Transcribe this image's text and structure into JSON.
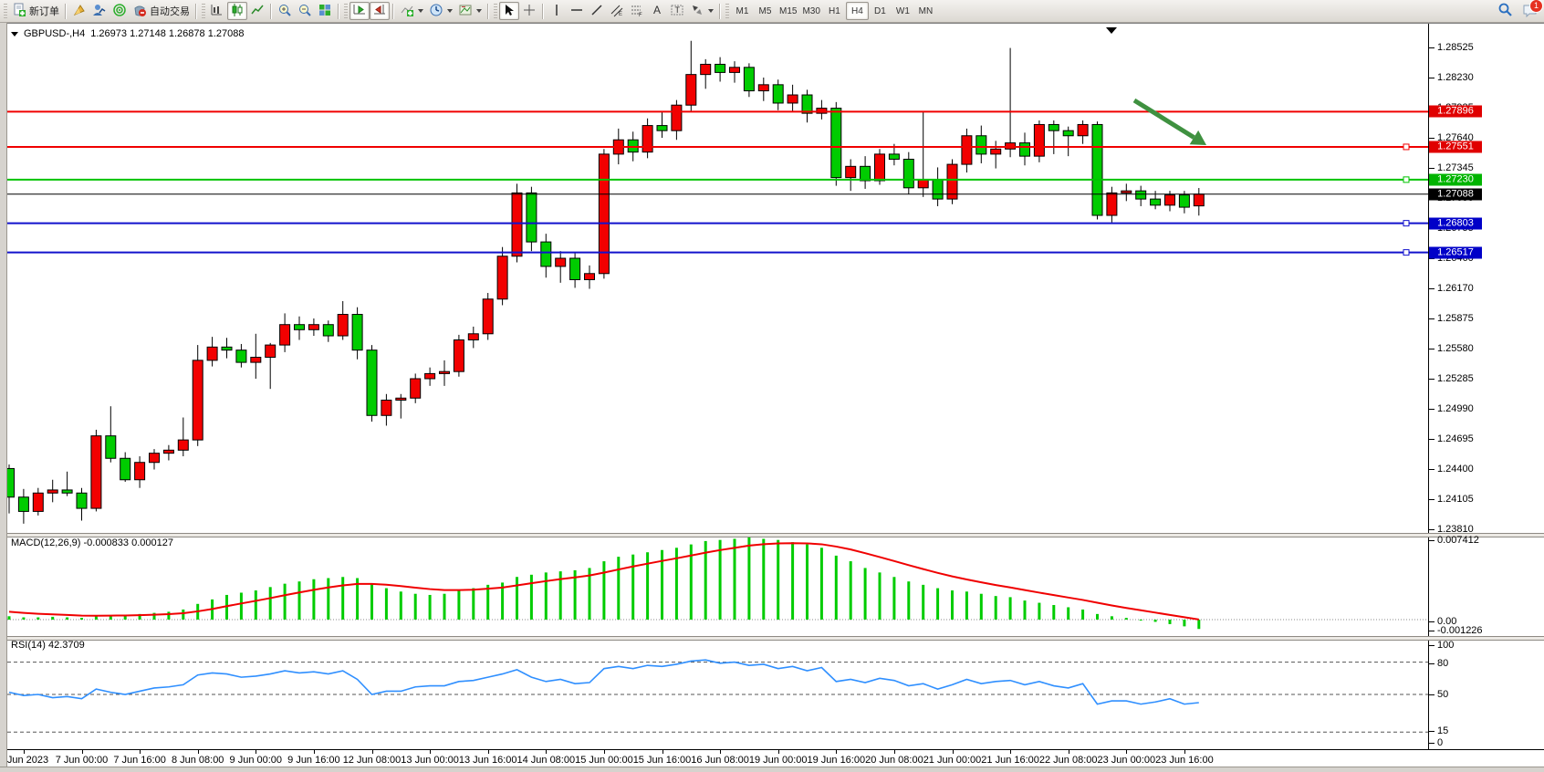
{
  "toolbar": {
    "new_order_label": "新订单",
    "auto_trading_label": "自动交易",
    "timeframes": [
      "M1",
      "M5",
      "M15",
      "M30",
      "H1",
      "H4",
      "D1",
      "W1",
      "MN"
    ],
    "selected_timeframe": "H4",
    "notification_count": "1"
  },
  "chart": {
    "symbol_period": "GBPUSD-,H4",
    "ohlc_text": "1.26973 1.27148 1.26878 1.27088"
  },
  "colors": {
    "candle_up": "#f20000",
    "candle_down": "#00cc00",
    "wick": "#000000",
    "line_red": "#f00000",
    "line_green": "#00c300",
    "line_blue": "#1212cc",
    "line_black": "#000000",
    "macd_hist": "#00cc00",
    "macd_signal": "#f00000",
    "rsi_line": "#2f8fff",
    "arrow_green": "#3f9140"
  },
  "price_axis": {
    "ticks": [
      "1.28525",
      "1.28230",
      "1.27935",
      "1.27640",
      "1.27345",
      "1.27050",
      "1.26755",
      "1.26460",
      "1.26170",
      "1.25875",
      "1.25580",
      "1.25285",
      "1.24990",
      "1.24695",
      "1.24400",
      "1.24105",
      "1.23810"
    ]
  },
  "time_axis": {
    "labels": [
      "6 Jun 2023",
      "7 Jun 00:00",
      "7 Jun 16:00",
      "8 Jun 08:00",
      "9 Jun 00:00",
      "9 Jun 16:00",
      "12 Jun 08:00",
      "13 Jun 00:00",
      "13 Jun 16:00",
      "14 Jun 08:00",
      "15 Jun 00:00",
      "15 Jun 16:00",
      "16 Jun 08:00",
      "19 Jun 00:00",
      "19 Jun 16:00",
      "20 Jun 08:00",
      "21 Jun 00:00",
      "21 Jun 16:00",
      "22 Jun 08:00",
      "23 Jun 00:00",
      "23 Jun 16:00"
    ]
  },
  "lines": [
    {
      "price": 1.27896,
      "label": "1.27896",
      "color": "#f00000",
      "tag": "#e00000",
      "width": 2,
      "marker": false
    },
    {
      "price": 1.27551,
      "label": "1.27551",
      "color": "#f00000",
      "tag": "#e00000",
      "width": 2,
      "marker": true
    },
    {
      "price": 1.2723,
      "label": "1.27230",
      "color": "#00c300",
      "tag": "#00b400",
      "width": 2,
      "marker": true
    },
    {
      "price": 1.27088,
      "label": "1.27088",
      "color": "#000000",
      "tag": "#000000",
      "width": 1,
      "marker": false
    },
    {
      "price": 1.26803,
      "label": "1.26803",
      "color": "#1212cc",
      "tag": "#0000c8",
      "width": 2,
      "marker": true
    },
    {
      "price": 1.26517,
      "label": "1.26517",
      "color": "#1212cc",
      "tag": "#0000c8",
      "width": 2,
      "marker": true
    }
  ],
  "indicators": {
    "macd": {
      "label": "MACD(12,26,9)",
      "values": "-0.000833 0.000127",
      "axis_max": "0.007412",
      "axis_zero": "0.00",
      "axis_min": "-0.001226"
    },
    "rsi": {
      "label": "RSI(14)",
      "values": "42.3709",
      "axis": [
        "100",
        "80",
        "50",
        "15",
        "0"
      ]
    }
  },
  "chart_data": [
    {
      "type": "candlestick",
      "title": "GBPUSD-,H4",
      "timeframe": "H4",
      "x_labels": [
        "6 Jun 2023",
        "7 Jun 00:00",
        "7 Jun 16:00",
        "8 Jun 08:00",
        "9 Jun 00:00",
        "9 Jun 16:00",
        "12 Jun 08:00",
        "13 Jun 00:00",
        "13 Jun 16:00",
        "14 Jun 08:00",
        "15 Jun 00:00",
        "15 Jun 16:00",
        "16 Jun 08:00",
        "19 Jun 00:00",
        "19 Jun 16:00",
        "20 Jun 08:00",
        "21 Jun 00:00",
        "21 Jun 16:00",
        "22 Jun 08:00",
        "23 Jun 00:00",
        "23 Jun 16:00"
      ],
      "ylim": [
        1.2381,
        1.2864
      ],
      "levels": [
        1.27896,
        1.27551,
        1.2723,
        1.27088,
        1.26803,
        1.26517
      ],
      "annotations": [
        {
          "type": "arrow",
          "direction": "down-right",
          "from": {
            "x": 1243,
            "y": 110
          },
          "to": {
            "x": 1322,
            "y": 159
          },
          "color": "#3f9140"
        }
      ],
      "ohlc": [
        [
          1.244,
          1.2444,
          1.2396,
          1.2412
        ],
        [
          1.2412,
          1.242,
          1.2386,
          1.2398
        ],
        [
          1.2398,
          1.2421,
          1.2394,
          1.2416
        ],
        [
          1.2416,
          1.2429,
          1.2407,
          1.2419
        ],
        [
          1.2419,
          1.2437,
          1.2413,
          1.2416
        ],
        [
          1.2416,
          1.2421,
          1.2389,
          1.2401
        ],
        [
          1.2401,
          1.2478,
          1.2398,
          1.2472
        ],
        [
          1.2472,
          1.2501,
          1.2446,
          1.245
        ],
        [
          1.245,
          1.2456,
          1.2427,
          1.2429
        ],
        [
          1.2429,
          1.2452,
          1.2421,
          1.2446
        ],
        [
          1.2446,
          1.2459,
          1.2439,
          1.2455
        ],
        [
          1.2455,
          1.2463,
          1.2448,
          1.2458
        ],
        [
          1.2458,
          1.249,
          1.2452,
          1.2468
        ],
        [
          1.2468,
          1.2561,
          1.2462,
          1.2546
        ],
        [
          1.2546,
          1.2569,
          1.254,
          1.2559
        ],
        [
          1.2559,
          1.2568,
          1.2548,
          1.2556
        ],
        [
          1.2556,
          1.2562,
          1.2539,
          1.2544
        ],
        [
          1.2544,
          1.2572,
          1.2528,
          1.2549
        ],
        [
          1.2549,
          1.2563,
          1.2518,
          1.2561
        ],
        [
          1.2561,
          1.2592,
          1.2554,
          1.2581
        ],
        [
          1.2581,
          1.2589,
          1.2566,
          1.2576
        ],
        [
          1.2576,
          1.2587,
          1.257,
          1.2581
        ],
        [
          1.2581,
          1.2585,
          1.2564,
          1.257
        ],
        [
          1.257,
          1.2604,
          1.2566,
          1.2591
        ],
        [
          1.2591,
          1.2598,
          1.2547,
          1.2556
        ],
        [
          1.2556,
          1.2561,
          1.2486,
          1.2492
        ],
        [
          1.2492,
          1.2513,
          1.2482,
          1.2507
        ],
        [
          1.2507,
          1.2513,
          1.2489,
          1.2509
        ],
        [
          1.2509,
          1.2533,
          1.2504,
          1.2528
        ],
        [
          1.2528,
          1.2539,
          1.2521,
          1.2533
        ],
        [
          1.2533,
          1.2546,
          1.2521,
          1.2535
        ],
        [
          1.2535,
          1.2571,
          1.253,
          1.2566
        ],
        [
          1.2566,
          1.2579,
          1.2558,
          1.2572
        ],
        [
          1.2572,
          1.2612,
          1.2566,
          1.2606
        ],
        [
          1.2606,
          1.2657,
          1.26,
          1.2648
        ],
        [
          1.2648,
          1.2719,
          1.2642,
          1.271
        ],
        [
          1.271,
          1.2716,
          1.2653,
          1.2662
        ],
        [
          1.2662,
          1.267,
          1.2627,
          1.2638
        ],
        [
          1.2638,
          1.2653,
          1.2622,
          1.2646
        ],
        [
          1.2646,
          1.2651,
          1.2617,
          1.2625
        ],
        [
          1.2625,
          1.2639,
          1.2616,
          1.2631
        ],
        [
          1.2631,
          1.2753,
          1.2626,
          1.2748
        ],
        [
          1.2748,
          1.2773,
          1.2738,
          1.2762
        ],
        [
          1.2762,
          1.277,
          1.2741,
          1.275
        ],
        [
          1.275,
          1.2783,
          1.2744,
          1.2776
        ],
        [
          1.2776,
          1.2789,
          1.2764,
          1.2771
        ],
        [
          1.2771,
          1.2801,
          1.2762,
          1.2796
        ],
        [
          1.2796,
          1.2859,
          1.279,
          1.2826
        ],
        [
          1.2826,
          1.2841,
          1.2812,
          1.2836
        ],
        [
          1.2836,
          1.2843,
          1.2819,
          1.2828
        ],
        [
          1.2828,
          1.2839,
          1.2818,
          1.2833
        ],
        [
          1.2833,
          1.2837,
          1.2804,
          1.281
        ],
        [
          1.281,
          1.2823,
          1.28,
          1.2816
        ],
        [
          1.2816,
          1.2821,
          1.2791,
          1.2798
        ],
        [
          1.2798,
          1.2816,
          1.2789,
          1.2806
        ],
        [
          1.2806,
          1.2811,
          1.2779,
          1.2788
        ],
        [
          1.2788,
          1.2801,
          1.2782,
          1.2793
        ],
        [
          1.2793,
          1.2799,
          1.2717,
          1.2725
        ],
        [
          1.2725,
          1.2743,
          1.2712,
          1.2736
        ],
        [
          1.2736,
          1.2746,
          1.2714,
          1.2722
        ],
        [
          1.2722,
          1.2753,
          1.2718,
          1.2748
        ],
        [
          1.2748,
          1.2758,
          1.2737,
          1.2743
        ],
        [
          1.2743,
          1.275,
          1.2709,
          1.2715
        ],
        [
          1.2715,
          1.2789,
          1.2706,
          1.2723
        ],
        [
          1.2723,
          1.2735,
          1.2697,
          1.2704
        ],
        [
          1.2704,
          1.2743,
          1.2699,
          1.2738
        ],
        [
          1.2738,
          1.2773,
          1.273,
          1.2766
        ],
        [
          1.2766,
          1.2776,
          1.2739,
          1.2748
        ],
        [
          1.2748,
          1.2761,
          1.2734,
          1.2753
        ],
        [
          1.2753,
          1.2852,
          1.2745,
          1.2759
        ],
        [
          1.2759,
          1.2769,
          1.2737,
          1.2746
        ],
        [
          1.2746,
          1.2781,
          1.274,
          1.2777
        ],
        [
          1.2777,
          1.2781,
          1.2748,
          1.2771
        ],
        [
          1.2771,
          1.2775,
          1.2746,
          1.2766
        ],
        [
          1.2766,
          1.2781,
          1.2758,
          1.2777
        ],
        [
          1.2777,
          1.278,
          1.2684,
          1.2688
        ],
        [
          1.2688,
          1.2716,
          1.2681,
          1.271
        ],
        [
          1.271,
          1.2719,
          1.2702,
          1.2712
        ],
        [
          1.2712,
          1.2717,
          1.2697,
          1.2704
        ],
        [
          1.2704,
          1.2712,
          1.2694,
          1.2698
        ],
        [
          1.2698,
          1.2712,
          1.2692,
          1.2708
        ],
        [
          1.2708,
          1.2712,
          1.269,
          1.2696
        ],
        [
          1.26973,
          1.27148,
          1.26878,
          1.27088
        ]
      ]
    },
    {
      "type": "bar",
      "name": "MACD(12,26,9) histogram",
      "ylim": [
        -0.001226,
        0.007412
      ],
      "current": -0.000833,
      "values": [
        0.0003,
        0.0002,
        0.0002,
        0.00025,
        0.0002,
        0.00015,
        0.0003,
        0.0004,
        0.0004,
        0.0005,
        0.0006,
        0.0007,
        0.0009,
        0.0014,
        0.0018,
        0.0022,
        0.0024,
        0.0026,
        0.0029,
        0.0032,
        0.0034,
        0.0036,
        0.0037,
        0.0038,
        0.0037,
        0.0032,
        0.0028,
        0.0025,
        0.0023,
        0.0022,
        0.0023,
        0.0026,
        0.0028,
        0.0031,
        0.0033,
        0.0038,
        0.004,
        0.0042,
        0.0043,
        0.0044,
        0.0046,
        0.0052,
        0.0056,
        0.0058,
        0.006,
        0.0062,
        0.0064,
        0.0067,
        0.007,
        0.0071,
        0.0072,
        0.0074,
        0.0072,
        0.0071,
        0.0069,
        0.0067,
        0.0064,
        0.0057,
        0.0052,
        0.0046,
        0.0042,
        0.0038,
        0.0034,
        0.0031,
        0.0028,
        0.0026,
        0.0025,
        0.0023,
        0.0021,
        0.002,
        0.0017,
        0.0015,
        0.0013,
        0.0011,
        0.0009,
        0.0005,
        0.0003,
        0.00015,
        0.0,
        -0.0002,
        -0.0004,
        -0.0006,
        -0.000833
      ]
    },
    {
      "type": "line",
      "name": "MACD signal",
      "derived": "EMA(9) of histogram",
      "current": 0.000127
    },
    {
      "type": "line",
      "name": "RSI(14)",
      "ylim": [
        0,
        100
      ],
      "levels": [
        80,
        50,
        15
      ],
      "current": 42.3709,
      "values": [
        52,
        49,
        50,
        47,
        48,
        46,
        55,
        52,
        50,
        53,
        56,
        57,
        59,
        68,
        70,
        69,
        66,
        67,
        69,
        72,
        70,
        71,
        69,
        72,
        64,
        50,
        53,
        53,
        57,
        58,
        58,
        62,
        63,
        66,
        69,
        73,
        66,
        62,
        64,
        60,
        61,
        74,
        76,
        74,
        77,
        76,
        78,
        81,
        82,
        79,
        80,
        77,
        78,
        74,
        76,
        72,
        75,
        62,
        64,
        61,
        65,
        63,
        58,
        60,
        55,
        59,
        64,
        60,
        62,
        63,
        59,
        62,
        58,
        56,
        60,
        41,
        44,
        44,
        41,
        43,
        46,
        41,
        42.37
      ]
    }
  ]
}
